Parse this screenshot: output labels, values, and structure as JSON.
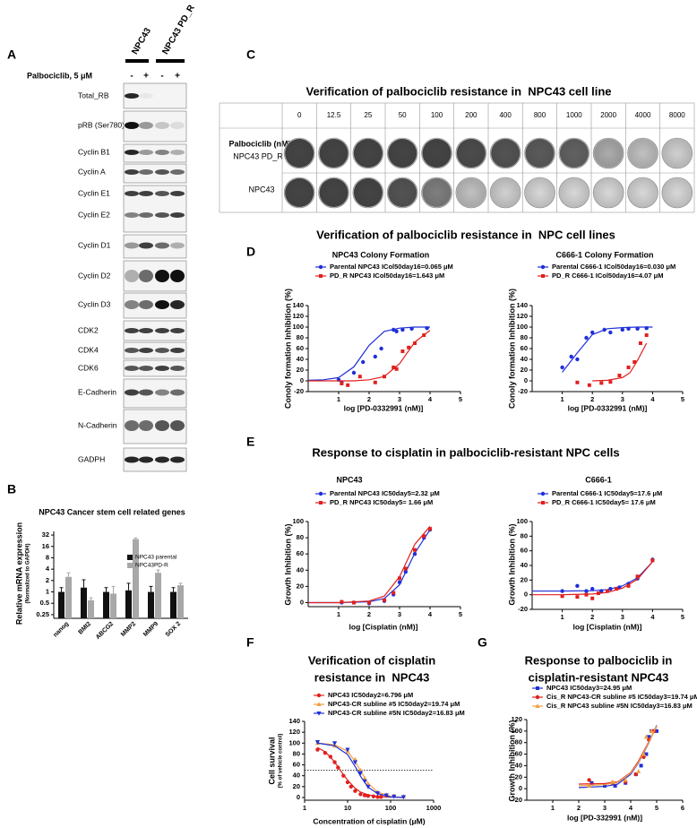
{
  "panel_labels": [
    "A",
    "B",
    "C",
    "D",
    "E",
    "F",
    "G"
  ],
  "western_blot": {
    "columns": [
      "NPC43",
      "NPC43 PD_R"
    ],
    "treatment_label": "Palbociclib, 5 μM",
    "lanes": [
      "-",
      "+",
      "-",
      "+"
    ],
    "proteins": [
      "Total_RB",
      "pRB (Ser780)",
      "Cyclin B1",
      "Cyclin A",
      "Cyclin E1",
      "Cyclin E2",
      "Cyclin D1",
      "Cyclin D2",
      "Cyclin D3",
      "CDK2",
      "CDK4",
      "CDK6",
      "E-Cadherin",
      "N-Cadherin",
      "GADPH"
    ]
  },
  "colony_formation": {
    "title": "Verification of palbociclib resistance in  NPC43 cell line",
    "concentration_label": "Palbociclib (nM)",
    "concentrations": [
      0,
      12.5,
      25,
      50,
      100,
      200,
      400,
      800,
      1000,
      2000,
      4000,
      8000
    ],
    "cell_lines": [
      "NPC43 PD_R",
      "NPC43"
    ]
  },
  "section_titles": {
    "D": "Verification of palbociclib resistance in  NPC cell lines",
    "E": "Response to cisplatin in palbociclib-resistant NPC cells"
  },
  "chart_data": [
    {
      "type": "bar",
      "title": "NPC43 Cancer stem cell related genes",
      "y_label": [
        "Relative mRNA expression",
        "(Normalized to GAPDH)"
      ],
      "categories": [
        "nanog",
        "BMI2",
        "ABCG2",
        "MMP2",
        "MMP9",
        "SOX 2"
      ],
      "series": [
        {
          "name": "NPC43 parental",
          "color": "#111111",
          "values": [
            1,
            1.3,
            1,
            1.1,
            1,
            1
          ],
          "errors": [
            0.3,
            0.8,
            0.3,
            0.6,
            0.4,
            0.3
          ]
        },
        {
          "name": "NPC43PD-R",
          "color": "#a8a8a8",
          "values": [
            2.5,
            0.6,
            0.9,
            25,
            3.2,
            1.5
          ],
          "errors": [
            0.7,
            0.1,
            0.5,
            2,
            0.6,
            0.2
          ]
        }
      ],
      "ylog": true,
      "ylim": [
        0.2,
        40
      ],
      "yticks": [
        0.25,
        0.5,
        1,
        2,
        4,
        8,
        16,
        32
      ]
    },
    {
      "type": "scatter",
      "title": "NPC43 Colony Formation",
      "y_label": "Conoly formation Inhibition (%)",
      "x_label": "log [PD-0332991 (nM)]",
      "xlim": [
        0,
        5
      ],
      "xticks": [
        1,
        2,
        3,
        4,
        5
      ],
      "ylim": [
        -20,
        140
      ],
      "yticks": [
        -20,
        0,
        20,
        40,
        60,
        80,
        100,
        120,
        140
      ],
      "series": [
        {
          "name": "Parental NPC43 ICol50day16=0.065 μM",
          "color": "#1f2fd8",
          "marker": "circle",
          "x": [
            1.0,
            1.1,
            1.5,
            1.8,
            2.2,
            2.4,
            2.8,
            2.9,
            3.1,
            3.4,
            3.9
          ],
          "values": [
            2,
            -3,
            15,
            35,
            45,
            60,
            95,
            92,
            95,
            97,
            98
          ],
          "fit_x": [
            0,
            0.5,
            1,
            1.5,
            2,
            2.5,
            3,
            3.5,
            4
          ],
          "fit_values": [
            1,
            2,
            6,
            26,
            66,
            92,
            98,
            100,
            100
          ]
        },
        {
          "name": "PD_R NPC43 ICol50day16=1.643 μM",
          "color": "#e0201f",
          "marker": "square",
          "x": [
            1.1,
            1.3,
            1.7,
            2.2,
            2.5,
            2.8,
            2.9,
            3.1,
            3.3,
            3.5,
            3.8
          ],
          "values": [
            -5,
            -8,
            8,
            -3,
            8,
            25,
            22,
            55,
            62,
            70,
            85
          ],
          "fit_x": [
            0,
            1,
            1.5,
            2,
            2.5,
            3,
            3.5,
            4
          ],
          "fit_values": [
            0,
            0,
            0,
            2,
            8,
            32,
            72,
            94
          ]
        }
      ]
    },
    {
      "type": "scatter",
      "title": "C666-1 Colony Formation",
      "y_label": "Conoly formation Inhibition (%)",
      "x_label": "log [PD-0332991 (nM)]",
      "xlim": [
        0,
        5
      ],
      "xticks": [
        1,
        2,
        3,
        4,
        5
      ],
      "ylim": [
        -20,
        140
      ],
      "yticks": [
        -20,
        0,
        20,
        40,
        60,
        80,
        100,
        120,
        140
      ],
      "series": [
        {
          "name": "Parental C666-1 ICol50day16=0.030 μM",
          "color": "#1f2fd8",
          "marker": "circle",
          "x": [
            1.0,
            1.3,
            1.5,
            1.8,
            2.0,
            2.4,
            2.6,
            3.0,
            3.2,
            3.5,
            3.8
          ],
          "values": [
            25,
            45,
            40,
            80,
            90,
            95,
            90,
            95,
            97,
            97,
            98
          ],
          "fit_x": [
            1,
            1.5,
            2,
            2.5,
            3,
            3.5,
            4
          ],
          "fit_values": [
            16,
            52,
            86,
            97,
            99,
            100,
            100
          ]
        },
        {
          "name": "PD_R C666-1 ICol50day16=4.07 μM",
          "color": "#e0201f",
          "marker": "square",
          "x": [
            1.5,
            1.9,
            2.3,
            2.6,
            2.9,
            3.2,
            3.4,
            3.6,
            3.8
          ],
          "values": [
            -3,
            -8,
            -4,
            -2,
            10,
            25,
            35,
            70,
            85
          ],
          "fit_x": [
            2,
            2.5,
            3,
            3.25,
            3.5,
            3.8
          ],
          "fit_values": [
            0,
            1,
            6,
            15,
            38,
            70
          ]
        }
      ]
    },
    {
      "type": "scatter",
      "title": "NPC43",
      "y_label": "Growth Inhibition (%)",
      "x_label": "log [Cisplatin (nM)]",
      "xlim": [
        0,
        5
      ],
      "xticks": [
        1,
        2,
        3,
        4,
        5
      ],
      "ylim": [
        -5,
        100
      ],
      "yticks": [
        0,
        20,
        40,
        60,
        80,
        100
      ],
      "series": [
        {
          "name": "Parental NPC43 IC50day5=2.32 μM",
          "color": "#1f2fd8",
          "marker": "circle",
          "x": [
            1.1,
            1.5,
            2,
            2.5,
            2.8,
            3,
            3.2,
            3.5,
            3.8,
            4
          ],
          "values": [
            0,
            0,
            -1,
            2,
            10,
            25,
            38,
            60,
            80,
            90
          ],
          "fit_x": [
            0,
            1,
            2,
            2.5,
            3,
            3.5,
            4
          ],
          "fit_values": [
            0,
            0,
            1,
            5,
            22,
            61,
            90
          ]
        },
        {
          "name": "PD_R NPC43 IC50day5= 1.66 μM",
          "color": "#e0201f",
          "marker": "square",
          "x": [
            1.1,
            1.5,
            2,
            2.5,
            2.8,
            3,
            3.2,
            3.5,
            3.8,
            4
          ],
          "values": [
            1,
            0,
            0,
            3,
            12,
            30,
            42,
            65,
            82,
            91
          ],
          "fit_x": [
            0,
            1,
            2,
            2.5,
            3,
            3.5,
            4
          ],
          "fit_values": [
            0,
            0,
            2,
            8,
            32,
            72,
            94
          ]
        }
      ]
    },
    {
      "type": "scatter",
      "title": "C666-1",
      "y_label": "Growth Inhibition (%)",
      "x_label": "log [Cisplatin (nM)]",
      "xlim": [
        0,
        5
      ],
      "xticks": [
        1,
        2,
        3,
        4,
        5
      ],
      "ylim": [
        -20,
        100
      ],
      "yticks": [
        -20,
        0,
        20,
        40,
        60,
        80,
        100
      ],
      "series": [
        {
          "name": "Parental C666-1 IC50day5=17.6 μM",
          "color": "#1f2fd8",
          "marker": "circle",
          "x": [
            1,
            1.5,
            1.8,
            2,
            2.3,
            2.6,
            2.9,
            3.2,
            3.5,
            4
          ],
          "values": [
            5,
            12,
            5,
            8,
            5,
            8,
            10,
            15,
            22,
            48
          ],
          "fit_x": [
            0,
            1,
            2,
            2.5,
            3,
            3.5,
            4
          ],
          "fit_values": [
            5,
            5,
            5.5,
            7,
            12,
            23,
            45
          ]
        },
        {
          "name": "PD_R C666-1 IC50day5= 17.6 μM",
          "color": "#e0201f",
          "marker": "square",
          "x": [
            1,
            1.5,
            1.8,
            2,
            2.2,
            2.5,
            2.8,
            3.2,
            3.5,
            4
          ],
          "values": [
            -2,
            -3,
            0,
            -5,
            2,
            5,
            8,
            12,
            25,
            47
          ],
          "fit_x": [
            0,
            1,
            2,
            2.5,
            3,
            3.5,
            4
          ],
          "fit_values": [
            0,
            0,
            1,
            3,
            9,
            21,
            45
          ]
        }
      ]
    },
    {
      "type": "scatter",
      "title": [
        "Verification of cisplatin",
        "resistance in  NPC43"
      ],
      "y_label": [
        "Cell survival",
        "(% of vehicle control)"
      ],
      "x_label": "Concentration of cisplatin (μM)",
      "xlog": true,
      "xlim": [
        1,
        1000
      ],
      "xticks": [
        1,
        10,
        100,
        1000
      ],
      "ylim": [
        -5,
        140
      ],
      "yticks": [
        0,
        20,
        40,
        60,
        80,
        100,
        120,
        140
      ],
      "reference_line": 50,
      "series": [
        {
          "name": "NPC43 IC50day2=6.796 μM",
          "color": "#e0201f",
          "marker": "circle",
          "x": [
            2,
            3,
            4,
            5,
            6,
            8,
            10,
            12,
            15,
            20,
            25,
            30,
            40,
            50,
            60
          ],
          "values": [
            88,
            82,
            75,
            65,
            55,
            40,
            28,
            20,
            12,
            6,
            4,
            3,
            2,
            1,
            1
          ],
          "fit_x": [
            2,
            3,
            4,
            5,
            6.8,
            8,
            10,
            15,
            20,
            30,
            50,
            100
          ],
          "fit_values": [
            92,
            84,
            74,
            65,
            50,
            42,
            32,
            17,
            10,
            5,
            2,
            0.5
          ]
        },
        {
          "name": "NPC43-CR subline #5 IC50day2=19.74 μM",
          "color": "#f0a040",
          "marker": "triangle",
          "x": [
            2,
            5,
            10,
            15,
            20,
            25,
            30,
            50,
            80,
            120,
            200
          ],
          "values": [
            100,
            95,
            85,
            70,
            50,
            35,
            25,
            10,
            5,
            3,
            2
          ],
          "fit_x": [
            2,
            5,
            10,
            15,
            20,
            30,
            50,
            100,
            200
          ],
          "fit_values": [
            100,
            97,
            85,
            66,
            49,
            26,
            10,
            2,
            0
          ]
        },
        {
          "name": "NPC43-CR subline #5N IC50day2=16.83 μM",
          "color": "#1f2fd8",
          "marker": "triangle-down",
          "x": [
            2,
            5,
            10,
            15,
            20,
            25,
            30,
            50,
            80,
            120,
            200
          ],
          "values": [
            102,
            100,
            88,
            65,
            45,
            30,
            20,
            8,
            4,
            2,
            1
          ],
          "fit_x": [
            2,
            5,
            10,
            15,
            20,
            30,
            50,
            100,
            200
          ],
          "fit_values": [
            100,
            95,
            79,
            57,
            39,
            19,
            7,
            1,
            0
          ]
        }
      ]
    },
    {
      "type": "scatter",
      "title": [
        "Response to palbociclib in",
        "cisplatin-resistant NPC43"
      ],
      "y_label": "Growth Inhibition (%)",
      "x_label": "log [PD-332991 (nM)]",
      "xlim": [
        0,
        6
      ],
      "xticks": [
        1,
        2,
        3,
        4,
        5,
        6
      ],
      "ylim": [
        -20,
        120
      ],
      "yticks": [
        -20,
        0,
        20,
        40,
        60,
        80,
        100,
        120
      ],
      "series": [
        {
          "name": "NPC43 IC50day3=24.95 μM",
          "color": "#1f2fd8",
          "marker": "square",
          "x": [
            2.5,
            3,
            3.4,
            3.8,
            4.2,
            4.4,
            4.6,
            4.7,
            4.8,
            5
          ],
          "values": [
            10,
            5,
            5,
            10,
            25,
            40,
            60,
            90,
            100,
            100
          ],
          "fit_x": [
            2,
            3,
            3.5,
            4,
            4.3,
            4.5,
            4.7,
            5
          ],
          "fit_values": [
            2,
            4,
            8,
            25,
            45,
            62,
            80,
            110
          ]
        },
        {
          "name": "Cis_R NPC43-CR subline #5 IC50day3=19.74 μM",
          "color": "#e0201f",
          "marker": "circle",
          "x": [
            2.4,
            3.3,
            3.8,
            4.2,
            4.5,
            4.7,
            4.9
          ],
          "values": [
            15,
            10,
            12,
            25,
            55,
            85,
            100
          ],
          "fit_x": [
            2,
            3,
            3.5,
            4,
            4.3,
            4.5,
            4.7,
            5
          ],
          "fit_values": [
            8,
            9,
            12,
            28,
            48,
            65,
            82,
            108
          ]
        },
        {
          "name": "Cis_R NPC43 subline #5N IC50day3=16.83 μM",
          "color": "#f0a040",
          "marker": "triangle",
          "x": [
            2.4,
            3.3,
            3.8,
            4.3,
            4.5,
            4.6,
            4.8
          ],
          "values": [
            5,
            12,
            15,
            30,
            60,
            90,
            100
          ],
          "fit_x": [
            2,
            3,
            3.5,
            4,
            4.3,
            4.5,
            4.7,
            5
          ],
          "fit_values": [
            5,
            7,
            11,
            27,
            46,
            63,
            81,
            109
          ]
        }
      ]
    }
  ]
}
